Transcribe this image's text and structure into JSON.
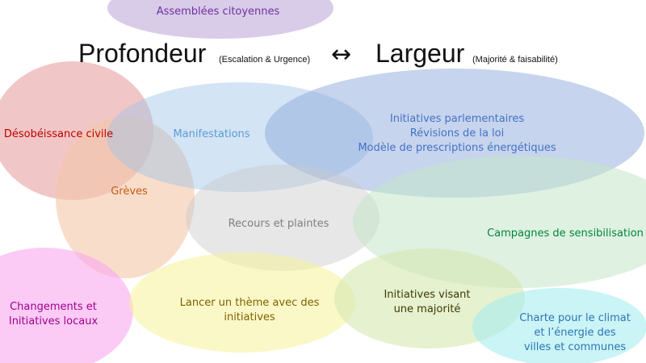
{
  "header": {
    "left_word": "Profondeur",
    "left_note": "(Escalation & Urgence)",
    "arrow": "↔",
    "right_word": "Largeur",
    "right_note": "(Majorité & faisabilité)"
  },
  "ellipses": [
    {
      "id": "assemblees",
      "fill": "#b9a3d6",
      "text": "Assemblées citoyennes",
      "color": "#7030a0"
    },
    {
      "id": "manifestations",
      "fill": "#9dc3e6",
      "text": "Manifestations",
      "color": "#5b9bd5"
    },
    {
      "id": "initiatives-parlementaires",
      "fill": "#8eaadb",
      "text": "Initiatives parlementaires\nRévisions de la loi\nModèle de prescriptions énergétiques",
      "color": "#4472c4"
    },
    {
      "id": "desobeissance",
      "fill": "#e6a0a0",
      "text": "Désobéissance civile",
      "color": "#c00000"
    },
    {
      "id": "greves",
      "fill": "#f4c6a8",
      "text": "Grèves",
      "color": "#c55a11"
    },
    {
      "id": "recours",
      "fill": "#c9c9c9",
      "text": "Recours et plaintes",
      "color": "#7f7f7f"
    },
    {
      "id": "campagnes",
      "fill": "#c5e6c9",
      "text": "Campagnes de sensibilisation",
      "color": "#00863d"
    },
    {
      "id": "changements",
      "fill": "#f8a8f0",
      "text": "Changements et\nInitiatives locaux",
      "color": "#a0008a"
    },
    {
      "id": "lancer",
      "fill": "#f7f39b",
      "text": "Lancer un thème avec des initiatives",
      "color": "#7f6000"
    },
    {
      "id": "majorite",
      "fill": "#d6e8b0",
      "text": "Initiatives visant\nune majorité",
      "color": "#3b3b00"
    },
    {
      "id": "charte",
      "fill": "#a6ecef",
      "text": "Charte pour le climat\net l’énergie des\nvilles et communes",
      "color": "#2e75b6"
    }
  ]
}
